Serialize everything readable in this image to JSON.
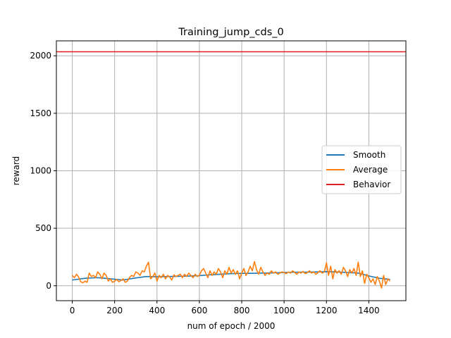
{
  "chart_data": {
    "type": "line",
    "title": "Training_jump_cds_0",
    "xlabel": "num of epoch / 2000",
    "ylabel": "reward",
    "xlim": [
      -75,
      1575
    ],
    "ylim": [
      -130,
      2130
    ],
    "xticks": [
      0,
      200,
      400,
      600,
      800,
      1000,
      1200,
      1400
    ],
    "yticks": [
      0,
      500,
      1000,
      1500,
      2000
    ],
    "grid": true,
    "legend_position": "center-right",
    "colors": {
      "Smooth": "#1f77b4",
      "Average": "#ff7f0e",
      "Behavior": "#e41a1c"
    },
    "series": [
      {
        "name": "Smooth",
        "x": [
          0,
          60,
          120,
          180,
          240,
          300,
          350,
          400,
          450,
          500,
          550,
          600,
          650,
          700,
          750,
          800,
          850,
          900,
          950,
          1000,
          1050,
          1100,
          1150,
          1200,
          1250,
          1300,
          1350,
          1400,
          1450,
          1500
        ],
        "y": [
          50,
          65,
          70,
          60,
          50,
          68,
          80,
          78,
          80,
          82,
          84,
          88,
          95,
          100,
          105,
          108,
          108,
          110,
          112,
          115,
          118,
          118,
          120,
          122,
          120,
          115,
          110,
          85,
          65,
          55
        ]
      },
      {
        "name": "Average",
        "x": [
          0,
          10,
          20,
          30,
          40,
          50,
          60,
          70,
          80,
          90,
          100,
          110,
          120,
          130,
          140,
          150,
          160,
          170,
          180,
          190,
          200,
          210,
          220,
          230,
          240,
          250,
          260,
          270,
          280,
          290,
          300,
          310,
          320,
          330,
          340,
          350,
          360,
          370,
          380,
          390,
          400,
          410,
          420,
          430,
          440,
          450,
          460,
          470,
          480,
          490,
          500,
          510,
          520,
          530,
          540,
          550,
          560,
          570,
          580,
          590,
          600,
          610,
          620,
          630,
          640,
          650,
          660,
          670,
          680,
          690,
          700,
          710,
          720,
          730,
          740,
          750,
          760,
          770,
          780,
          790,
          800,
          810,
          820,
          830,
          840,
          850,
          860,
          870,
          880,
          890,
          900,
          910,
          920,
          930,
          940,
          950,
          960,
          970,
          980,
          990,
          1000,
          1010,
          1020,
          1030,
          1040,
          1050,
          1060,
          1070,
          1080,
          1090,
          1100,
          1110,
          1120,
          1130,
          1140,
          1150,
          1160,
          1170,
          1180,
          1190,
          1200,
          1210,
          1220,
          1230,
          1240,
          1250,
          1260,
          1270,
          1280,
          1290,
          1300,
          1310,
          1320,
          1330,
          1340,
          1350,
          1360,
          1370,
          1380,
          1390,
          1400,
          1410,
          1420,
          1430,
          1440,
          1450,
          1460,
          1470,
          1480,
          1490,
          1500
        ],
        "y": [
          90,
          70,
          100,
          75,
          35,
          25,
          40,
          30,
          110,
          80,
          90,
          70,
          120,
          100,
          60,
          110,
          90,
          40,
          60,
          30,
          40,
          55,
          35,
          45,
          60,
          30,
          40,
          70,
          90,
          80,
          120,
          110,
          90,
          130,
          120,
          170,
          205,
          60,
          80,
          110,
          40,
          90,
          70,
          100,
          60,
          90,
          75,
          50,
          95,
          80,
          90,
          100,
          70,
          100,
          80,
          110,
          90,
          70,
          100,
          80,
          90,
          130,
          150,
          110,
          70,
          130,
          90,
          120,
          100,
          150,
          120,
          70,
          130,
          100,
          160,
          110,
          140,
          100,
          130,
          60,
          110,
          150,
          90,
          120,
          170,
          130,
          210,
          140,
          100,
          160,
          120,
          90,
          110,
          100,
          130,
          110,
          120,
          100,
          110,
          120,
          115,
          105,
          120,
          110,
          130,
          115,
          100,
          120,
          110,
          125,
          105,
          115,
          130,
          110,
          120,
          100,
          115,
          130,
          110,
          120,
          200,
          90,
          170,
          60,
          140,
          110,
          130,
          100,
          160,
          130,
          80,
          140,
          110,
          150,
          90,
          205,
          80,
          130,
          20,
          100,
          70,
          30,
          60,
          10,
          80,
          40,
          -20,
          90,
          10,
          60,
          40
        ]
      },
      {
        "name": "Behavior",
        "x": [
          -75,
          1575
        ],
        "y": [
          2035,
          2035
        ]
      }
    ]
  }
}
